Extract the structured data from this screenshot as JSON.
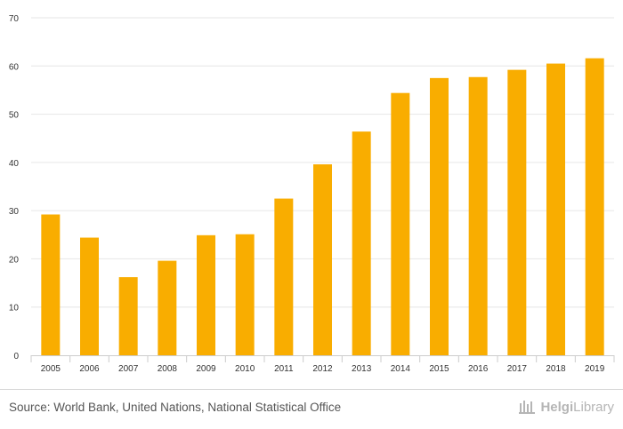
{
  "chart_data": {
    "type": "bar",
    "title": "",
    "xlabel": "",
    "ylabel": "",
    "categories": [
      "2005",
      "2006",
      "2007",
      "2008",
      "2009",
      "2010",
      "2011",
      "2012",
      "2013",
      "2014",
      "2015",
      "2016",
      "2017",
      "2018",
      "2019"
    ],
    "values": [
      29.2,
      24.4,
      16.2,
      19.6,
      24.9,
      25.1,
      32.5,
      39.6,
      46.4,
      54.4,
      57.5,
      57.7,
      59.2,
      60.5,
      61.6
    ],
    "ylim": [
      0,
      70
    ],
    "yticks": [
      0,
      10,
      20,
      30,
      40,
      50,
      60,
      70
    ],
    "grid": true,
    "bar_color": "#f9ad00"
  },
  "footer": {
    "source": "Source: World Bank, United Nations, National Statistical Office",
    "brand_part1": "Helgi",
    "brand_part2": "Library"
  },
  "colors": {
    "grid": "#e6e6e6",
    "axis_text": "#333333",
    "brand": "#b5b5b5"
  }
}
